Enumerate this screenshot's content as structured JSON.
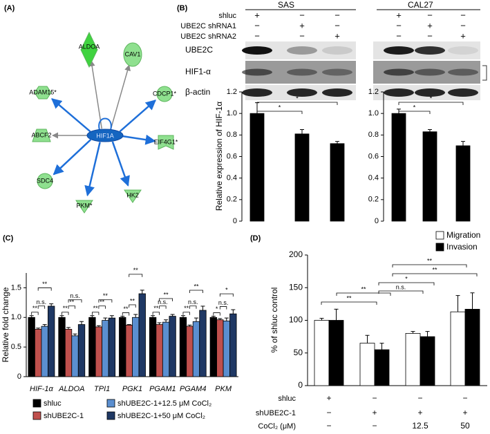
{
  "network": {
    "panel": "(A)",
    "center": "HIF1A",
    "nodes": [
      "ALDOA",
      "CAV1",
      "ADAM15*",
      "CDCP1*",
      "ABCF2",
      "EIF4G1*",
      "SDC4",
      "PKM*",
      "HK2"
    ]
  },
  "blot": {
    "panel": "(B)",
    "rows": [
      {
        "name": "shluc",
        "signs": [
          "+",
          "−",
          "−",
          "+",
          "−",
          "−"
        ]
      },
      {
        "name": "UBE2C shRNA1",
        "signs": [
          "−",
          "+",
          "−",
          "−",
          "+",
          "−"
        ]
      },
      {
        "name": "UBE2C shRNA2",
        "signs": [
          "−",
          "−",
          "+",
          "−",
          "−",
          "+"
        ]
      }
    ],
    "bands": [
      "UBE2C",
      "HIF1-α",
      "β-actin"
    ]
  },
  "chart_data": [
    {
      "type": "bar",
      "title": "SAS",
      "ylabel": "Relative expression of HIF-1α",
      "color": "#000000",
      "values": [
        1.0,
        0.81,
        0.72
      ],
      "errors": [
        0.1,
        0.04,
        0.02
      ],
      "ylim": [
        0,
        1.2
      ],
      "yticks": [
        0,
        0.2,
        0.4,
        0.6,
        0.8,
        {
          "value": 1.0,
          "label": "1.0"
        },
        1.2
      ],
      "annotations": [
        "*",
        "*"
      ]
    },
    {
      "type": "bar",
      "title": "CAL27",
      "color": "#000000",
      "values": [
        1.0,
        0.83,
        0.7
      ],
      "errors": [
        0.04,
        0.02,
        0.04
      ],
      "ylim": [
        0,
        1.2
      ],
      "yticks": [
        0,
        0.2,
        0.4,
        0.6,
        0.8,
        {
          "value": 1.0,
          "label": "1.0"
        },
        1.2
      ],
      "annotations": [
        "*",
        "*"
      ]
    },
    {
      "type": "bar",
      "panel": "(C)",
      "ylabel": "Relative fold change",
      "categories": [
        "HIF-1α",
        "ALDOA",
        "TPI1",
        "PGK1",
        "PGAM1",
        "PGAM4",
        "PKM"
      ],
      "series": [
        {
          "name": "shluc",
          "color": "#000000",
          "values": [
            1,
            1,
            1,
            1,
            1,
            1,
            1
          ],
          "errors": [
            0.03,
            0.03,
            0.03,
            0.02,
            0.03,
            0.03,
            0.02
          ]
        },
        {
          "name": "shUBE2C-1",
          "color": "#c0504d",
          "values": [
            0.8,
            0.8,
            0.84,
            0.87,
            0.88,
            0.85,
            0.96
          ],
          "errors": [
            0.02,
            0.03,
            0.02,
            0.01,
            0.03,
            0.02,
            0.02
          ]
        },
        {
          "name": "shUBE2C-1+12.5 μM CoCl₂",
          "color": "#5b8fd0",
          "values": [
            0.85,
            0.69,
            0.95,
            1.0,
            0.92,
            0.93,
            0.94
          ],
          "errors": [
            0.03,
            0.03,
            0.04,
            0.05,
            0.04,
            0.06,
            0.05
          ]
        },
        {
          "name": "shUBE2C-1+50 μM CoCl₂",
          "color": "#1f3864",
          "values": [
            1.19,
            0.88,
            0.99,
            1.4,
            1.02,
            1.12,
            1.06
          ],
          "errors": [
            0.04,
            0.05,
            0.04,
            0.06,
            0.03,
            0.07,
            0.07
          ]
        }
      ],
      "ylim": [
        0,
        1.75
      ],
      "yticks": [
        0,
        0.5,
        {
          "value": 1.0,
          "label": "1.0"
        },
        1.5
      ],
      "annotations": [
        [
          "**",
          "n.s.",
          "**"
        ],
        [
          "**",
          "**",
          "n.s."
        ],
        [
          "**",
          "**",
          "**"
        ],
        [
          "**",
          "**",
          "**"
        ],
        [
          "**",
          "n.s.",
          "**"
        ],
        [
          "**",
          "n.s.",
          "**"
        ],
        [
          "*",
          "n.s.",
          "*"
        ]
      ]
    },
    {
      "type": "bar",
      "panel": "(D)",
      "ylabel": "% of shluc control",
      "series": [
        {
          "name": "Migration",
          "color": "#ffffff",
          "values": [
            100,
            65,
            80,
            113
          ],
          "errors": [
            3,
            12,
            3,
            25
          ]
        },
        {
          "name": "Invasion",
          "color": "#000000",
          "values": [
            100,
            55,
            75,
            117
          ],
          "errors": [
            17,
            10,
            8,
            25
          ]
        }
      ],
      "ylim": [
        0,
        200
      ],
      "yticks": [
        0,
        50,
        100,
        150,
        200
      ],
      "annotations": [
        "**",
        "**",
        "n.s.",
        "*",
        "**",
        "**"
      ],
      "conditions": [
        {
          "label": "shluc",
          "cells": [
            "+",
            "−",
            "−",
            "−"
          ]
        },
        {
          "label": "shUBE2C-1",
          "cells": [
            "−",
            "+",
            "+",
            "+"
          ]
        },
        {
          "label": "CoCl₂ (μM)",
          "cells": [
            "−",
            "−",
            "12.5",
            "50"
          ]
        }
      ]
    }
  ]
}
